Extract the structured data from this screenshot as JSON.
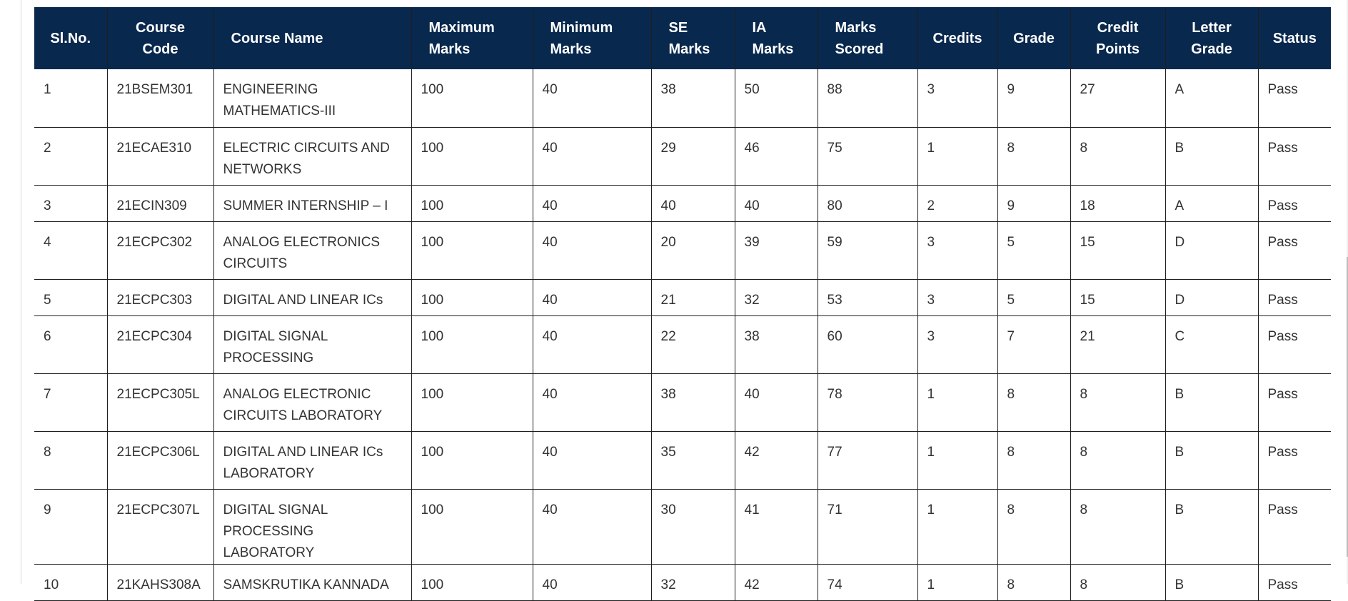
{
  "table": {
    "headers": {
      "slno": [
        "Sl.No."
      ],
      "code": [
        "Course",
        "Code"
      ],
      "name": [
        "Course Name"
      ],
      "max": [
        "Maximum",
        "Marks"
      ],
      "min": [
        "Minimum",
        "Marks"
      ],
      "se": [
        "SE",
        "Marks"
      ],
      "ia": [
        "IA",
        "Marks"
      ],
      "scored": [
        "Marks",
        "Scored"
      ],
      "credits": [
        "Credits"
      ],
      "grade": [
        "Grade"
      ],
      "points": [
        "Credit",
        "Points"
      ],
      "letter": [
        "Letter",
        "Grade"
      ],
      "status": [
        "Status"
      ]
    },
    "header_labels": {
      "slno": "Sl.No.",
      "code_1": "Course",
      "code_2": "Code",
      "name": "Course Name",
      "max_1": "Maximum",
      "max_2": "Marks",
      "min_1": "Minimum",
      "min_2": "Marks",
      "se_1": "SE",
      "se_2": "Marks",
      "ia_1": "IA",
      "ia_2": "Marks",
      "scored_1": "Marks",
      "scored_2": "Scored",
      "credits": "Credits",
      "grade": "Grade",
      "points_1": "Credit",
      "points_2": "Points",
      "letter_1": "Letter",
      "letter_2": "Grade",
      "status": "Status"
    },
    "rows": [
      {
        "slno": "1",
        "code": "21BSEM301",
        "name": "ENGINEERING MATHEMATICS-III",
        "max": "100",
        "min": "40",
        "se": "38",
        "ia": "50",
        "scored": "88",
        "credits": "3",
        "grade": "9",
        "points": "27",
        "letter": "A",
        "status": "Pass"
      },
      {
        "slno": "2",
        "code": "21ECAE310",
        "name": "ELECTRIC CIRCUITS AND NETWORKS",
        "max": "100",
        "min": "40",
        "se": "29",
        "ia": "46",
        "scored": "75",
        "credits": "1",
        "grade": "8",
        "points": "8",
        "letter": "B",
        "status": "Pass"
      },
      {
        "slno": "3",
        "code": "21ECIN309",
        "name": "SUMMER INTERNSHIP – I",
        "max": "100",
        "min": "40",
        "se": "40",
        "ia": "40",
        "scored": "80",
        "credits": "2",
        "grade": "9",
        "points": "18",
        "letter": "A",
        "status": "Pass"
      },
      {
        "slno": "4",
        "code": "21ECPC302",
        "name": "ANALOG ELECTRONICS CIRCUITS",
        "max": "100",
        "min": "40",
        "se": "20",
        "ia": "39",
        "scored": "59",
        "credits": "3",
        "grade": "5",
        "points": "15",
        "letter": "D",
        "status": "Pass"
      },
      {
        "slno": "5",
        "code": "21ECPC303",
        "name": "DIGITAL AND LINEAR ICs",
        "max": "100",
        "min": "40",
        "se": "21",
        "ia": "32",
        "scored": "53",
        "credits": "3",
        "grade": "5",
        "points": "15",
        "letter": "D",
        "status": "Pass"
      },
      {
        "slno": "6",
        "code": "21ECPC304",
        "name": "DIGITAL SIGNAL PROCESSING",
        "max": "100",
        "min": "40",
        "se": "22",
        "ia": "38",
        "scored": "60",
        "credits": "3",
        "grade": "7",
        "points": "21",
        "letter": "C",
        "status": "Pass"
      },
      {
        "slno": "7",
        "code": "21ECPC305L",
        "name": "ANALOG ELECTRONIC CIRCUITS LABORATORY",
        "max": "100",
        "min": "40",
        "se": "38",
        "ia": "40",
        "scored": "78",
        "credits": "1",
        "grade": "8",
        "points": "8",
        "letter": "B",
        "status": "Pass"
      },
      {
        "slno": "8",
        "code": "21ECPC306L",
        "name": "DIGITAL AND LINEAR ICs LABORATORY",
        "max": "100",
        "min": "40",
        "se": "35",
        "ia": "42",
        "scored": "77",
        "credits": "1",
        "grade": "8",
        "points": "8",
        "letter": "B",
        "status": "Pass"
      },
      {
        "slno": "9",
        "code": "21ECPC307L",
        "name": "DIGITAL SIGNAL PROCESSING LABORATORY",
        "max": "100",
        "min": "40",
        "se": "30",
        "ia": "41",
        "scored": "71",
        "credits": "1",
        "grade": "8",
        "points": "8",
        "letter": "B",
        "status": "Pass"
      },
      {
        "slno": "10",
        "code": "21KAHS308A",
        "name": "SAMSKRUTIKA KANNADA",
        "max": "100",
        "min": "40",
        "se": "32",
        "ia": "42",
        "scored": "74",
        "credits": "1",
        "grade": "8",
        "points": "8",
        "letter": "B",
        "status": "Pass"
      }
    ]
  },
  "colors": {
    "header_bg": "#08284e",
    "header_text": "#ffffff",
    "cell_text": "#333333",
    "border": "#1e1e1e"
  }
}
